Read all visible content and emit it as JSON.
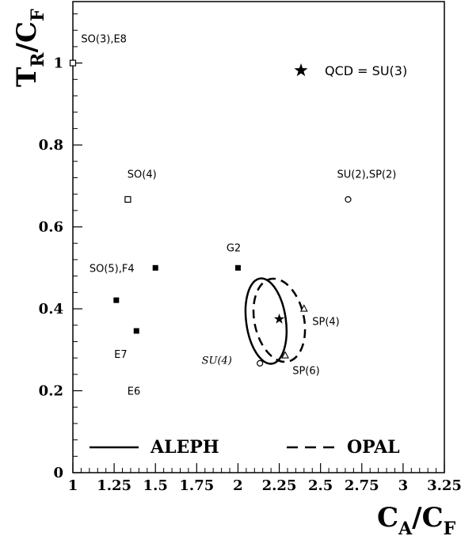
{
  "chart_data": {
    "type": "scatter",
    "xlabel": {
      "main": "C",
      "sub": "A",
      "slash": "/",
      "main2": "C",
      "sub2": "F"
    },
    "ylabel": {
      "main": "T",
      "sub": "R",
      "slash": "/",
      "main2": "C",
      "sub2": "F"
    },
    "xlim": [
      1,
      3.25
    ],
    "ylim": [
      0,
      1.15
    ],
    "xticks": [
      1,
      1.25,
      1.5,
      1.75,
      2,
      2.25,
      2.5,
      2.75,
      3,
      3.25
    ],
    "xtick_labels": [
      "1",
      "1.25",
      "1.5",
      "1.75",
      "2",
      "2.25",
      "2.5",
      "2.75",
      "3",
      "3.25"
    ],
    "yticks": [
      0,
      0.2,
      0.4,
      0.6,
      0.8,
      1
    ],
    "ytick_labels": [
      "0",
      "0.2",
      "0.4",
      "0.6",
      "0.8",
      "1"
    ],
    "grid": false,
    "points": [
      {
        "id": "so3-e8",
        "x": 1.0,
        "y": 1.0,
        "marker": "open-square",
        "label": "SO(3),E8",
        "label_x": 1.05,
        "label_y": 1.06,
        "italic": false
      },
      {
        "id": "so4",
        "x": 1.333,
        "y": 0.667,
        "marker": "open-square",
        "label": "SO(4)",
        "label_x": 1.33,
        "label_y": 0.73,
        "italic": false
      },
      {
        "id": "su2-sp2",
        "x": 2.667,
        "y": 0.667,
        "marker": "open-circle",
        "label": "SU(2),SP(2)",
        "label_x": 2.6,
        "label_y": 0.73,
        "italic": false
      },
      {
        "id": "so5-f4",
        "x": 1.5,
        "y": 0.5,
        "marker": "filled-square",
        "label": "SO(5),F4",
        "label_x": 1.1,
        "label_y": 0.5,
        "italic": false
      },
      {
        "id": "g2",
        "x": 2.0,
        "y": 0.5,
        "marker": "filled-square",
        "label": "G2",
        "label_x": 1.93,
        "label_y": 0.55,
        "italic": false
      },
      {
        "id": "e7",
        "x": 1.263,
        "y": 0.421,
        "marker": "filled-square",
        "label": "E7",
        "label_x": 1.25,
        "label_y": 0.29,
        "italic": false
      },
      {
        "id": "e6",
        "x": 1.385,
        "y": 0.346,
        "marker": "filled-square",
        "label": "E6",
        "label_x": 1.33,
        "label_y": 0.2,
        "italic": false
      },
      {
        "id": "sp4",
        "x": 2.4,
        "y": 0.4,
        "marker": "open-triangle",
        "label": "SP(4)",
        "label_x": 2.45,
        "label_y": 0.37,
        "italic": false
      },
      {
        "id": "sp6",
        "x": 2.286,
        "y": 0.286,
        "marker": "open-triangle",
        "label": "SP(6)",
        "label_x": 2.33,
        "label_y": 0.25,
        "italic": false
      },
      {
        "id": "su4",
        "x": 2.133,
        "y": 0.267,
        "marker": "open-circle",
        "label": "SU(4)",
        "label_x": 1.78,
        "label_y": 0.275,
        "italic": true
      },
      {
        "id": "qcd",
        "x": 2.25,
        "y": 0.375,
        "marker": "star",
        "label": "",
        "label_x": 2.25,
        "label_y": 0.375,
        "italic": false
      }
    ],
    "ellipses": [
      {
        "name": "ALEPH",
        "style": "solid",
        "cx": 2.17,
        "cy": 0.37,
        "rx": 0.12,
        "ry": 0.105,
        "rotation_deg": -8
      },
      {
        "name": "OPAL",
        "style": "dashed",
        "cx": 2.25,
        "cy": 0.372,
        "rx": 0.15,
        "ry": 0.103,
        "rotation_deg": -12
      }
    ],
    "legend": {
      "position": "bottom",
      "entries": [
        {
          "label": "ALEPH",
          "style": "solid"
        },
        {
          "label": "OPAL",
          "style": "dashed"
        }
      ]
    },
    "qcd_legend": {
      "label": "QCD = SU(3)",
      "position": "top-right"
    }
  }
}
